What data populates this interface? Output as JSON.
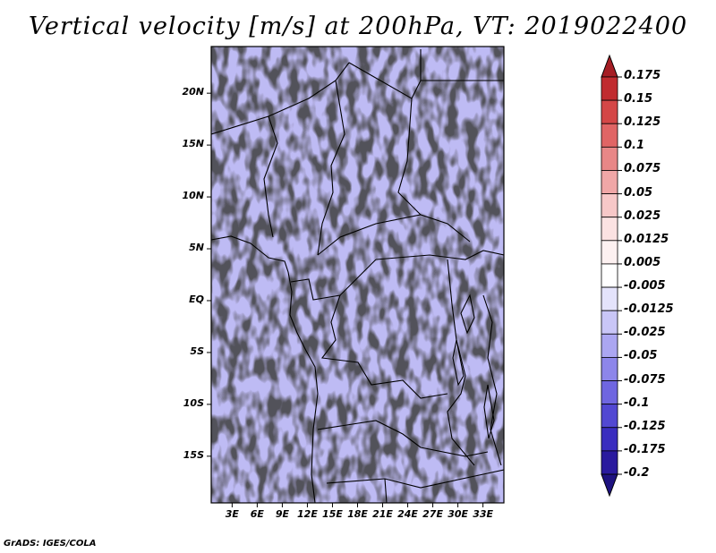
{
  "title": "Vertical velocity [m/s] at 200hPa, VT: 2019022400",
  "credit": "GrADS: IGES/COLA",
  "map": {
    "lat_range": [
      -19.5,
      24.5
    ],
    "lon_range": [
      0.5,
      35.5
    ],
    "lat_labels": [
      {
        "value": 20,
        "text": "20N"
      },
      {
        "value": 15,
        "text": "15N"
      },
      {
        "value": 10,
        "text": "10N"
      },
      {
        "value": 5,
        "text": "5N"
      },
      {
        "value": 0,
        "text": "EQ"
      },
      {
        "value": -5,
        "text": "5S"
      },
      {
        "value": -10,
        "text": "10S"
      },
      {
        "value": -15,
        "text": "15S"
      }
    ],
    "lon_labels": [
      {
        "value": 3,
        "text": "3E"
      },
      {
        "value": 6,
        "text": "6E"
      },
      {
        "value": 9,
        "text": "9E"
      },
      {
        "value": 12,
        "text": "12E"
      },
      {
        "value": 15,
        "text": "15E"
      },
      {
        "value": 18,
        "text": "18E"
      },
      {
        "value": 21,
        "text": "21E"
      },
      {
        "value": 24,
        "text": "24E"
      },
      {
        "value": 27,
        "text": "27E"
      },
      {
        "value": 30,
        "text": "30E"
      },
      {
        "value": 33,
        "text": "33E"
      }
    ]
  },
  "colorbar": {
    "levels": [
      {
        "text": "0.175",
        "color": "#a51d24"
      },
      {
        "text": "0.15",
        "color": "#c02b2f"
      },
      {
        "text": "0.125",
        "color": "#d44747"
      },
      {
        "text": "0.1",
        "color": "#e06565"
      },
      {
        "text": "0.075",
        "color": "#e88787"
      },
      {
        "text": "0.05",
        "color": "#f0a7a7"
      },
      {
        "text": "0.025",
        "color": "#f7c8c8"
      },
      {
        "text": "0.0125",
        "color": "#fbe2e2"
      },
      {
        "text": "0.005",
        "color": "#fdf1f1"
      },
      {
        "text": "-0.005",
        "color": "#ffffff"
      },
      {
        "text": "-0.0125",
        "color": "#e4e3fb"
      },
      {
        "text": "-0.025",
        "color": "#c9c6f7"
      },
      {
        "text": "-0.05",
        "color": "#aba6f1"
      },
      {
        "text": "-0.075",
        "color": "#8d86ea"
      },
      {
        "text": "-0.1",
        "color": "#6f66e0"
      },
      {
        "text": "-0.125",
        "color": "#5248d2"
      },
      {
        "text": "-0.175",
        "color": "#3a2dbf"
      },
      {
        "text": "-0.2",
        "color": "#2a1a9e"
      }
    ],
    "top_color": "#a51d24",
    "bottom_color": "#1e1280"
  }
}
